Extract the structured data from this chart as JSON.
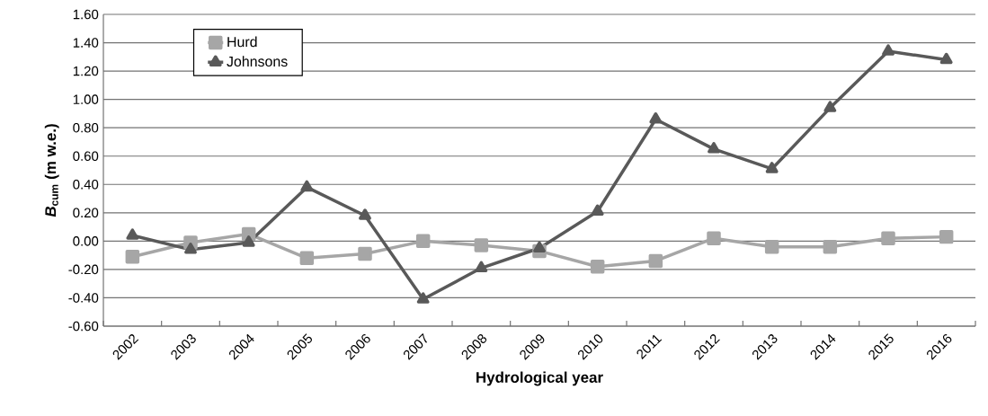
{
  "chart_data": {
    "type": "line",
    "xlabel": "Hydrological year",
    "ylabel": "*B*$_{cum}$ (m w.e.)",
    "categories": [
      "2002",
      "2003",
      "2004",
      "2005",
      "2006",
      "2007",
      "2008",
      "2009",
      "2010",
      "2011",
      "2012",
      "2013",
      "2014",
      "2015",
      "2016"
    ],
    "series": [
      {
        "name": "Hurd",
        "color": "#a6a6a6",
        "marker": "square",
        "values": [
          -0.11,
          -0.01,
          0.05,
          -0.12,
          -0.09,
          0.0,
          -0.03,
          -0.07,
          -0.18,
          -0.14,
          0.02,
          -0.04,
          -0.04,
          0.02,
          0.03
        ]
      },
      {
        "name": "Johnsons",
        "color": "#595959",
        "marker": "triangle",
        "values": [
          0.04,
          -0.06,
          -0.01,
          0.38,
          0.18,
          -0.41,
          -0.19,
          -0.05,
          0.21,
          0.86,
          0.65,
          0.51,
          0.94,
          1.34,
          1.28
        ]
      }
    ],
    "ylim": [
      -0.6,
      1.6
    ],
    "yticks": [
      {
        "value": -0.6,
        "label": "-0.60"
      },
      {
        "value": -0.4,
        "label": "-0.40"
      },
      {
        "value": -0.2,
        "label": "-0.20"
      },
      {
        "value": 0,
        "label": "0.00"
      },
      {
        "value": 0.2,
        "label": "0.20"
      },
      {
        "value": 0.4,
        "label": "0.40"
      },
      {
        "value": 0.6,
        "label": "0.60"
      },
      {
        "value": 0.8,
        "label": "0.80"
      },
      {
        "value": 1.0,
        "label": "1.00"
      },
      {
        "value": 1.2,
        "label": "1.20"
      },
      {
        "value": 1.4,
        "label": "1.40"
      },
      {
        "value": 1.6,
        "label": "1.60"
      }
    ],
    "grid": "y",
    "legend": "top left",
    "line_style": "solid"
  }
}
